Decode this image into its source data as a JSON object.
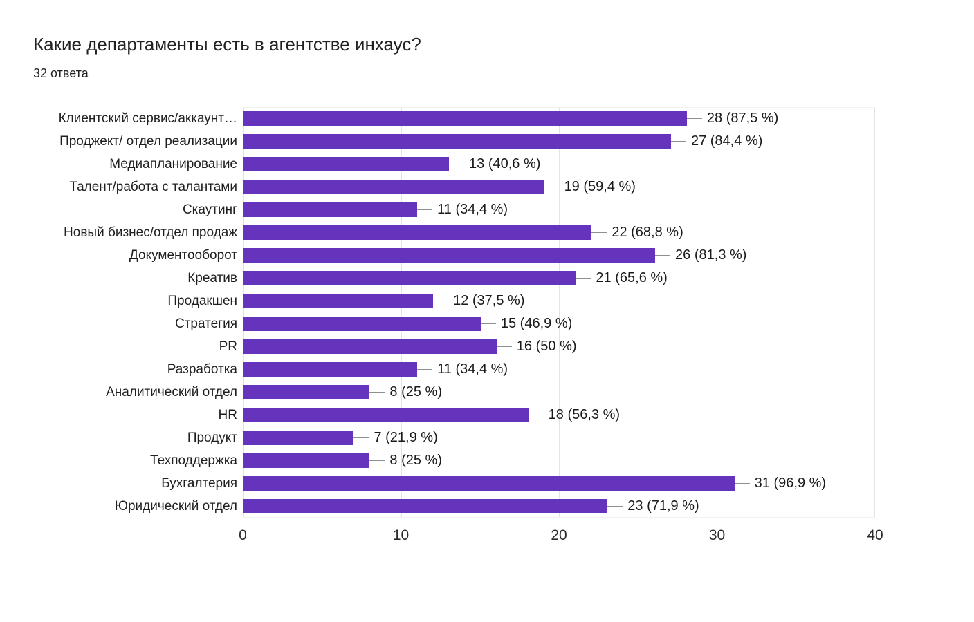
{
  "header": {
    "title": "Какие департаменты есть в агентстве инхаус?",
    "subtitle": "32 ответа"
  },
  "chart_data": {
    "type": "bar",
    "orientation": "horizontal",
    "title": "Какие департаменты есть в агентстве инхаус?",
    "subtitle": "32 ответа",
    "categories": [
      "Клиентский сервис/аккаунт…",
      "Проджект/ отдел реализации",
      "Медиапланирование",
      "Талент/работа с талантами",
      "Скаутинг",
      "Новый бизнес/отдел продаж",
      "Документооборот",
      "Креатив",
      "Продакшен",
      "Стратегия",
      "PR",
      "Разработка",
      "Аналитический отдел",
      "HR",
      "Продукт",
      "Техподдержка",
      "Бухгалтерия",
      "Юридический отдел"
    ],
    "values": [
      28,
      27,
      13,
      19,
      11,
      22,
      26,
      21,
      12,
      15,
      16,
      11,
      8,
      18,
      7,
      8,
      31,
      23
    ],
    "value_labels": [
      "28 (87,5 %)",
      "27 (84,4 %)",
      "13 (40,6 %)",
      "19 (59,4 %)",
      "11 (34,4 %)",
      "22 (68,8 %)",
      "26 (81,3 %)",
      "21 (65,6 %)",
      "12 (37,5 %)",
      "15 (46,9 %)",
      "16 (50 %)",
      "11 (34,4 %)",
      "8 (25 %)",
      "18 (56,3 %)",
      "7 (21,9 %)",
      "8 (25 %)",
      "31 (96,9 %)",
      "23 (71,9 %)"
    ],
    "xlim": [
      0,
      40
    ],
    "xticks": [
      0,
      10,
      20,
      30,
      40
    ],
    "bar_color": "#6434bc",
    "grid": true,
    "legend": "none",
    "xlabel": "",
    "ylabel": ""
  }
}
